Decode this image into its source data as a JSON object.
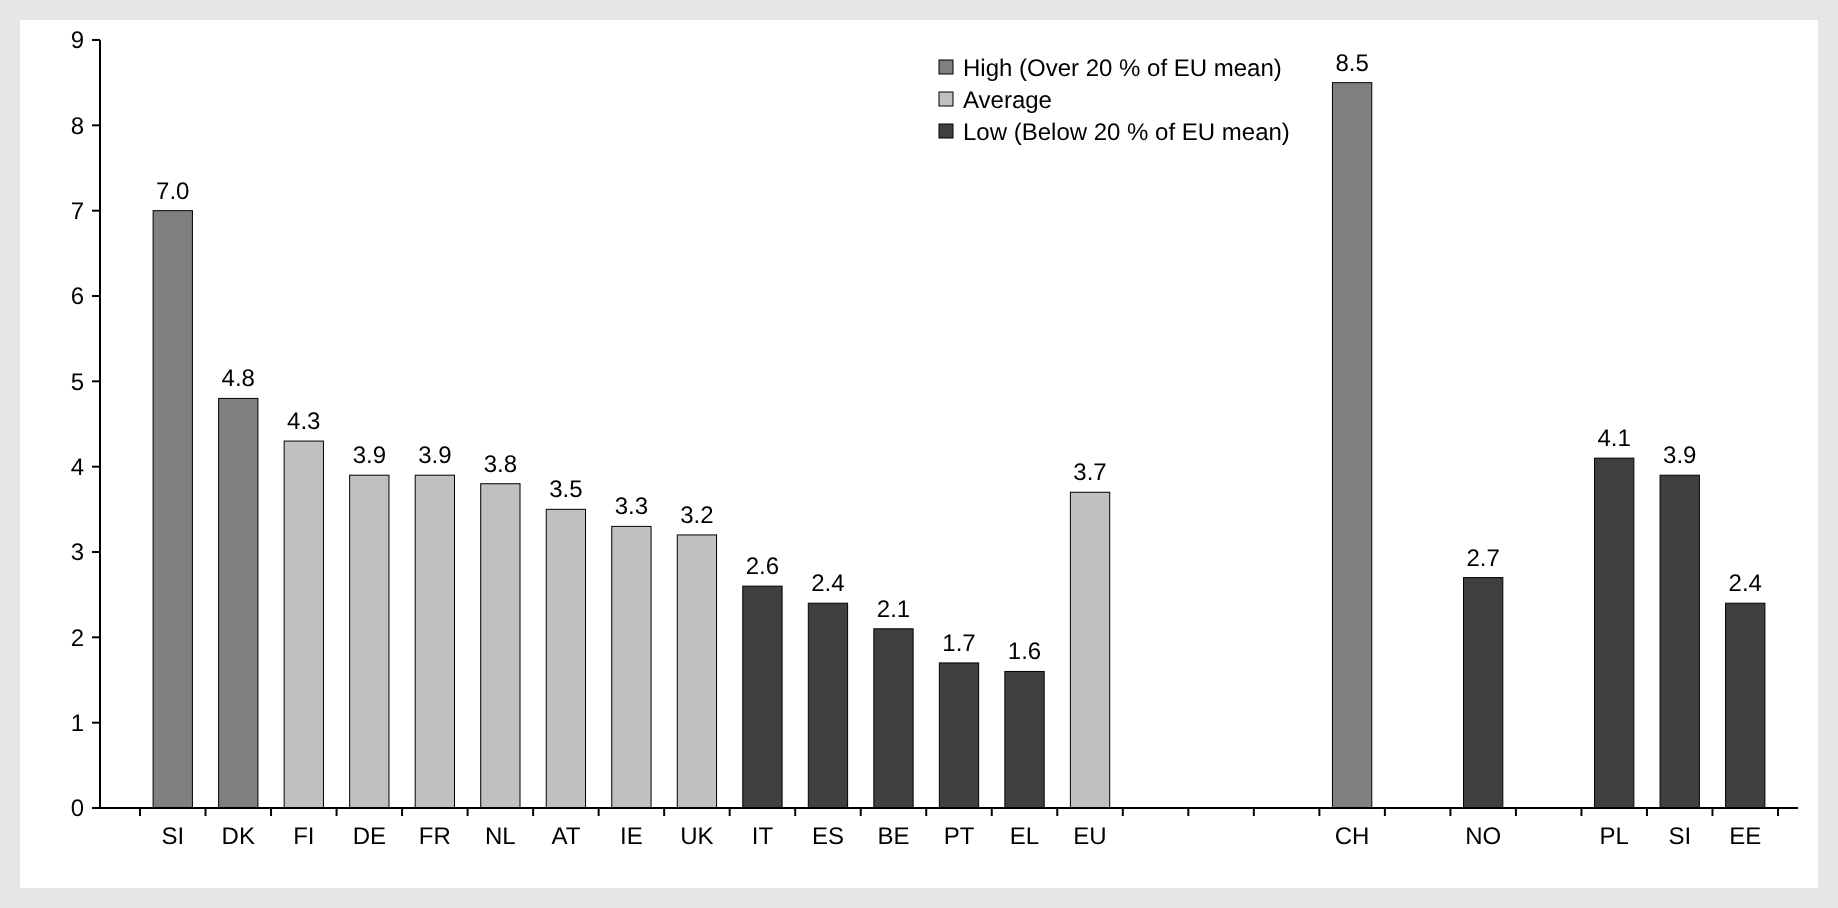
{
  "chart_data": {
    "type": "bar",
    "categories": [
      "SI",
      "DK",
      "FI",
      "DE",
      "FR",
      "NL",
      "AT",
      "IE",
      "UK",
      "IT",
      "ES",
      "BE",
      "PT",
      "EL",
      "EU",
      null,
      null,
      null,
      "CH",
      null,
      "NO",
      null,
      "PL",
      "SI",
      "EE"
    ],
    "series": [
      {
        "name": "High (Over 20 % of EU mean)",
        "color": "#808080",
        "values": [
          7.0,
          4.8,
          null,
          null,
          null,
          null,
          null,
          null,
          null,
          null,
          null,
          null,
          null,
          null,
          null,
          null,
          null,
          null,
          8.5,
          null,
          null,
          null,
          null,
          null,
          null
        ],
        "value_labels": [
          "7.0",
          "4.8",
          null,
          null,
          null,
          null,
          null,
          null,
          null,
          null,
          null,
          null,
          null,
          null,
          null,
          null,
          null,
          null,
          "8.5",
          null,
          null,
          null,
          null,
          null,
          null
        ]
      },
      {
        "name": "Average",
        "color": "#c0c0c0",
        "values": [
          null,
          null,
          4.3,
          3.9,
          3.9,
          3.8,
          3.5,
          3.3,
          3.2,
          null,
          null,
          null,
          null,
          null,
          3.7,
          null,
          null,
          null,
          null,
          null,
          null,
          null,
          null,
          null,
          null
        ],
        "value_labels": [
          null,
          null,
          "4.3",
          "3.9",
          "3.9",
          "3.8",
          "3.5",
          "3.3",
          "3.2",
          null,
          null,
          null,
          null,
          null,
          "3.7",
          null,
          null,
          null,
          null,
          null,
          null,
          null,
          null,
          null,
          null
        ]
      },
      {
        "name": "Low (Below 20 % of EU mean)",
        "color": "#404040",
        "values": [
          null,
          null,
          null,
          null,
          null,
          null,
          null,
          null,
          null,
          2.6,
          2.4,
          2.1,
          1.7,
          1.6,
          null,
          null,
          null,
          null,
          null,
          null,
          2.7,
          null,
          4.1,
          3.9,
          2.4
        ],
        "value_labels": [
          null,
          null,
          null,
          null,
          null,
          null,
          null,
          null,
          null,
          "2.6",
          "2.4",
          "2.1",
          "1.7",
          "1.6",
          null,
          null,
          null,
          null,
          null,
          null,
          "2.7",
          null,
          "4.1",
          "3.9",
          "2.4"
        ]
      }
    ],
    "ylim": [
      0,
      9
    ],
    "yticks": [
      0,
      1,
      2,
      3,
      4,
      5,
      6,
      7,
      8,
      9
    ],
    "grid": false,
    "legend": "top"
  }
}
